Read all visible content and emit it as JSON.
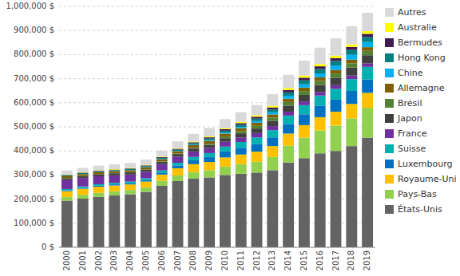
{
  "chart_data": {
    "type": "bar",
    "stacked": true,
    "grid": true,
    "legend": "right",
    "categories": [
      "2000",
      "2001",
      "2002",
      "2003",
      "2004",
      "2005",
      "2006",
      "2007",
      "2008",
      "2009",
      "2010",
      "2011",
      "2012",
      "2013",
      "2014",
      "2015",
      "2016",
      "2017",
      "2018",
      "2019"
    ],
    "ylim": [
      0,
      1000000
    ],
    "yticks": [
      {
        "value": 0,
        "label": "0 $"
      },
      {
        "value": 100000,
        "label": "100,000 $"
      },
      {
        "value": 200000,
        "label": "200,000 $"
      },
      {
        "value": 300000,
        "label": "300,000 $"
      },
      {
        "value": 400000,
        "label": "400,000 $"
      },
      {
        "value": 500000,
        "label": "500,000 $"
      },
      {
        "value": 600000,
        "label": "600,000 $"
      },
      {
        "value": 700000,
        "label": "700,000 $"
      },
      {
        "value": 800000,
        "label": "800,000 $"
      },
      {
        "value": 900000,
        "label": "900,000 $"
      },
      {
        "value": 1000000,
        "label": "1,000,000 $"
      }
    ],
    "series": [
      {
        "name": "États-Unis",
        "color": "#636363",
        "values": [
          193700,
          202000,
          209000,
          215000,
          220000,
          230000,
          255000,
          275000,
          285000,
          290000,
          300000,
          305000,
          310000,
          320000,
          352000,
          370000,
          390000,
          400000,
          420000,
          455000
        ]
      },
      {
        "name": "Pays-Bas",
        "color": "#92d050",
        "values": [
          15300,
          16000,
          17000,
          17500,
          18000,
          19000,
          21000,
          23000,
          27000,
          30000,
          35000,
          40000,
          45000,
          55000,
          70000,
          85000,
          95000,
          105000,
          115000,
          123900
        ]
      },
      {
        "name": "Royaume-Uni",
        "color": "#ffc000",
        "values": [
          24000,
          25000,
          25500,
          24000,
          23000,
          24000,
          26000,
          30000,
          33000,
          34000,
          38000,
          40000,
          42000,
          45000,
          50000,
          52000,
          55000,
          58000,
          60000,
          62300
        ]
      },
      {
        "name": "Luxembourg",
        "color": "#0070c0",
        "values": [
          3000,
          3500,
          4000,
          4500,
          5000,
          6000,
          8000,
          12000,
          16000,
          20000,
          25000,
          28000,
          32000,
          36000,
          40000,
          45000,
          48000,
          50000,
          54000,
          56000
        ]
      },
      {
        "name": "Suisse",
        "color": "#00b0b0",
        "values": [
          5800,
          6000,
          6200,
          6500,
          7000,
          7500,
          9000,
          11000,
          14000,
          17000,
          20000,
          24000,
          27000,
          30000,
          35000,
          38000,
          42000,
          45000,
          49000,
          51700
        ]
      },
      {
        "name": "France",
        "color": "#7030a0",
        "values": [
          37000,
          35000,
          33000,
          31000,
          29000,
          27000,
          26000,
          25000,
          23000,
          21000,
          20000,
          19000,
          18000,
          17000,
          16000,
          15500,
          15000,
          14900,
          14800,
          14800
        ]
      },
      {
        "name": "Japon",
        "color": "#404040",
        "values": [
          8000,
          8200,
          8500,
          8700,
          9000,
          9500,
          10000,
          11000,
          12000,
          13000,
          15000,
          17000,
          19000,
          22000,
          25000,
          27000,
          29000,
          31000,
          33000,
          33600
        ]
      },
      {
        "name": "Brésil",
        "color": "#548235",
        "values": [
          600,
          700,
          800,
          900,
          1000,
          1200,
          1500,
          2000,
          3000,
          5000,
          7000,
          9000,
          11000,
          13000,
          15000,
          16000,
          17000,
          17500,
          18000,
          18100
        ]
      },
      {
        "name": "Allemagne",
        "color": "#7f6000",
        "values": [
          7300,
          7500,
          7700,
          7900,
          8100,
          8300,
          9000,
          10000,
          11000,
          11500,
          12000,
          12500,
          13000,
          13500,
          14000,
          14500,
          14800,
          15000,
          15200,
          15300
        ]
      },
      {
        "name": "Chine",
        "color": "#00b0f0",
        "values": [
          200,
          300,
          400,
          500,
          600,
          800,
          1000,
          1500,
          2000,
          3000,
          4000,
          5000,
          7000,
          9000,
          12000,
          14000,
          16000,
          18000,
          20000,
          21200
        ]
      },
      {
        "name": "Hong Kong",
        "color": "#008080",
        "values": [
          3400,
          3500,
          3600,
          3700,
          3800,
          4000,
          4500,
          5000,
          6000,
          7000,
          8000,
          9000,
          10000,
          11000,
          14000,
          16000,
          18000,
          19000,
          20000,
          20900
        ]
      },
      {
        "name": "Bermudes",
        "color": "#3e1c52",
        "values": [
          2000,
          2100,
          2200,
          2300,
          2500,
          2700,
          3000,
          3500,
          4000,
          5000,
          6000,
          7000,
          8000,
          9000,
          10000,
          11000,
          11500,
          12000,
          12800,
          13200
        ]
      },
      {
        "name": "Australie",
        "color": "#ffff00",
        "values": [
          1700,
          1800,
          1900,
          2000,
          2100,
          2200,
          2400,
          2700,
          3000,
          3500,
          4000,
          5000,
          6000,
          7000,
          8000,
          9000,
          9500,
          10000,
          10800,
          11200
        ]
      },
      {
        "name": "Autres",
        "color": "#d9d9d9",
        "values": [
          17000,
          18000,
          19000,
          20000,
          21000,
          22000,
          25000,
          28000,
          32000,
          35000,
          38000,
          40000,
          43000,
          48000,
          55000,
          62000,
          68000,
          72000,
          75000,
          76300
        ]
      }
    ]
  }
}
